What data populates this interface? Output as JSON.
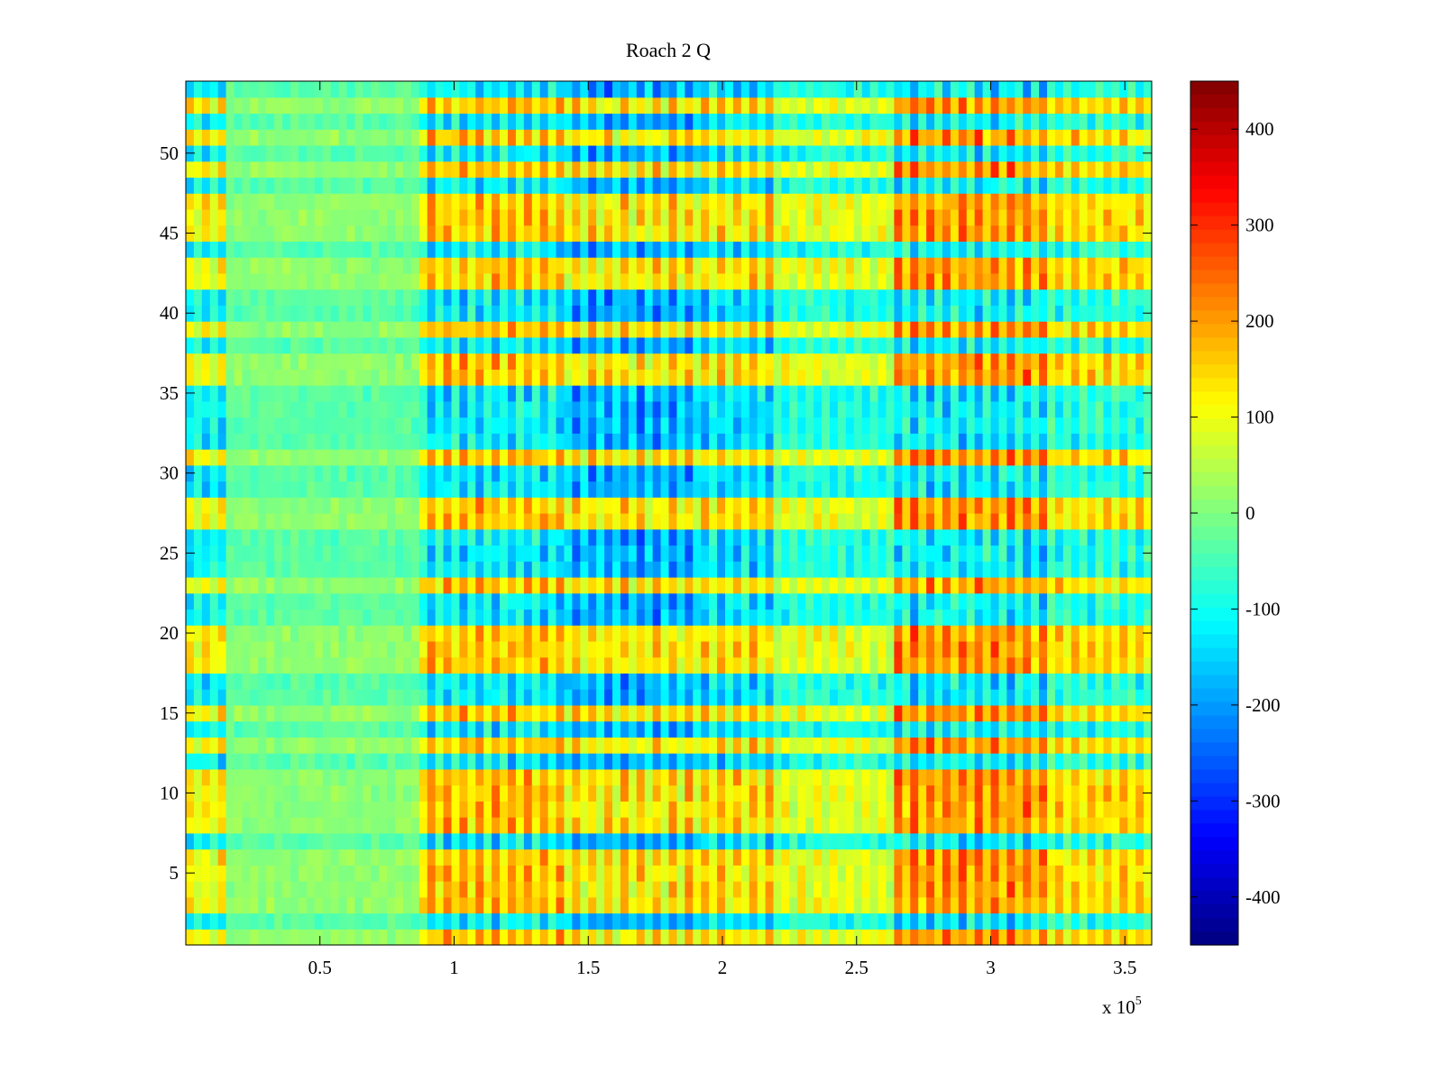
{
  "chart_data": {
    "type": "heatmap",
    "title": "Roach 2 Q",
    "xlabel": "",
    "ylabel": "",
    "xlim": [
      0,
      360000
    ],
    "ylim": [
      0.5,
      54.5
    ],
    "x_ticks": [
      50000,
      100000,
      150000,
      200000,
      250000,
      300000,
      350000
    ],
    "x_tick_labels": [
      "0.5",
      "1",
      "1.5",
      "2",
      "2.5",
      "3",
      "3.5"
    ],
    "x_exponent_label": "x 10",
    "x_exponent_power": "5",
    "y_ticks": [
      5,
      10,
      15,
      20,
      25,
      30,
      35,
      40,
      45,
      50
    ],
    "y_tick_labels": [
      "5",
      "10",
      "15",
      "20",
      "25",
      "30",
      "35",
      "40",
      "45",
      "50"
    ],
    "rows": 54,
    "colormap": "jet",
    "colorbar": {
      "min": -450,
      "max": 450,
      "ticks": [
        400,
        300,
        200,
        100,
        0,
        -100,
        -200,
        -300,
        -400
      ],
      "tick_labels": [
        "400",
        "300",
        "200",
        "100",
        "0",
        "-100",
        "-200",
        "-300",
        "-400"
      ]
    },
    "column_segments": [
      {
        "x_start": 0,
        "x_end": 15000,
        "description": "noisy edge, mixed values",
        "mean": 0,
        "amplitude": 180
      },
      {
        "x_start": 15000,
        "x_end": 86000,
        "description": "quiet, near zero",
        "mean": -10,
        "amplitude": 40
      },
      {
        "x_start": 86000,
        "x_end": 140000,
        "description": "strong alternating bands",
        "mean": 20,
        "amplitude": 230
      },
      {
        "x_start": 140000,
        "x_end": 190000,
        "description": "opposite-sign bands, blue dominant",
        "mean": -30,
        "amplitude": 250
      },
      {
        "x_start": 190000,
        "x_end": 218000,
        "description": "alternating bands",
        "mean": 0,
        "amplitude": 220
      },
      {
        "x_start": 218000,
        "x_end": 264000,
        "description": "smooth blocks",
        "mean": 0,
        "amplitude": 140
      },
      {
        "x_start": 264000,
        "x_end": 320000,
        "description": "strong alternating bands, red dominant",
        "mean": 40,
        "amplitude": 260
      },
      {
        "x_start": 320000,
        "x_end": 360000,
        "description": "mixed bands",
        "mean": 30,
        "amplitude": 180
      }
    ],
    "legend": "colorbar-right"
  }
}
